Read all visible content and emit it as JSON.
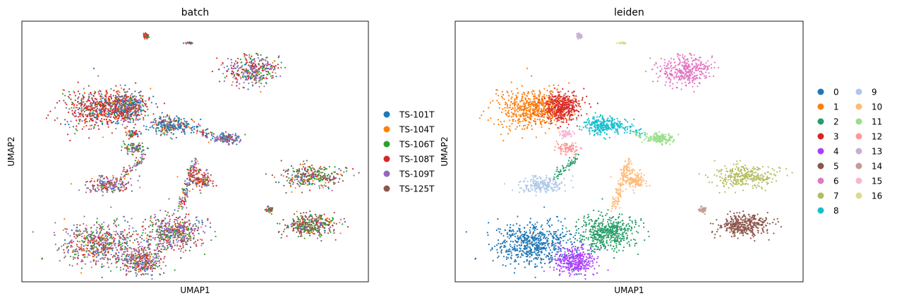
{
  "chart_data": [
    {
      "type": "scatter",
      "title": "batch",
      "xlabel": "UMAP1",
      "ylabel": "UMAP2",
      "legend_placement": "right",
      "grid": false,
      "ticks": "none",
      "series": [
        {
          "name": "TS-101T",
          "color": "#1f77b4"
        },
        {
          "name": "TS-104T",
          "color": "#ff7f0e"
        },
        {
          "name": "TS-106T",
          "color": "#2ca02c"
        },
        {
          "name": "TS-108T",
          "color": "#d62728"
        },
        {
          "name": "TS-109T",
          "color": "#9467bd"
        },
        {
          "name": "TS-125T",
          "color": "#8c564b"
        }
      ]
    },
    {
      "type": "scatter",
      "title": "leiden",
      "xlabel": "UMAP1",
      "ylabel": "UMAP2",
      "legend_placement": "right",
      "legend_columns": 2,
      "grid": false,
      "ticks": "none",
      "series": [
        {
          "name": "0",
          "color": "#1f77b4"
        },
        {
          "name": "1",
          "color": "#ff7f0e"
        },
        {
          "name": "2",
          "color": "#279e68"
        },
        {
          "name": "3",
          "color": "#d62728"
        },
        {
          "name": "4",
          "color": "#aa40fc"
        },
        {
          "name": "5",
          "color": "#8c564b"
        },
        {
          "name": "6",
          "color": "#e377c2"
        },
        {
          "name": "7",
          "color": "#b5bd61"
        },
        {
          "name": "8",
          "color": "#17becf"
        },
        {
          "name": "9",
          "color": "#aec7e8"
        },
        {
          "name": "10",
          "color": "#ffbb78"
        },
        {
          "name": "11",
          "color": "#98df8a"
        },
        {
          "name": "12",
          "color": "#ff9896"
        },
        {
          "name": "13",
          "color": "#c5b0d5"
        },
        {
          "name": "14",
          "color": "#c49c94"
        },
        {
          "name": "15",
          "color": "#f7b6d2"
        },
        {
          "name": "16",
          "color": "#dbdb8d"
        }
      ]
    }
  ]
}
